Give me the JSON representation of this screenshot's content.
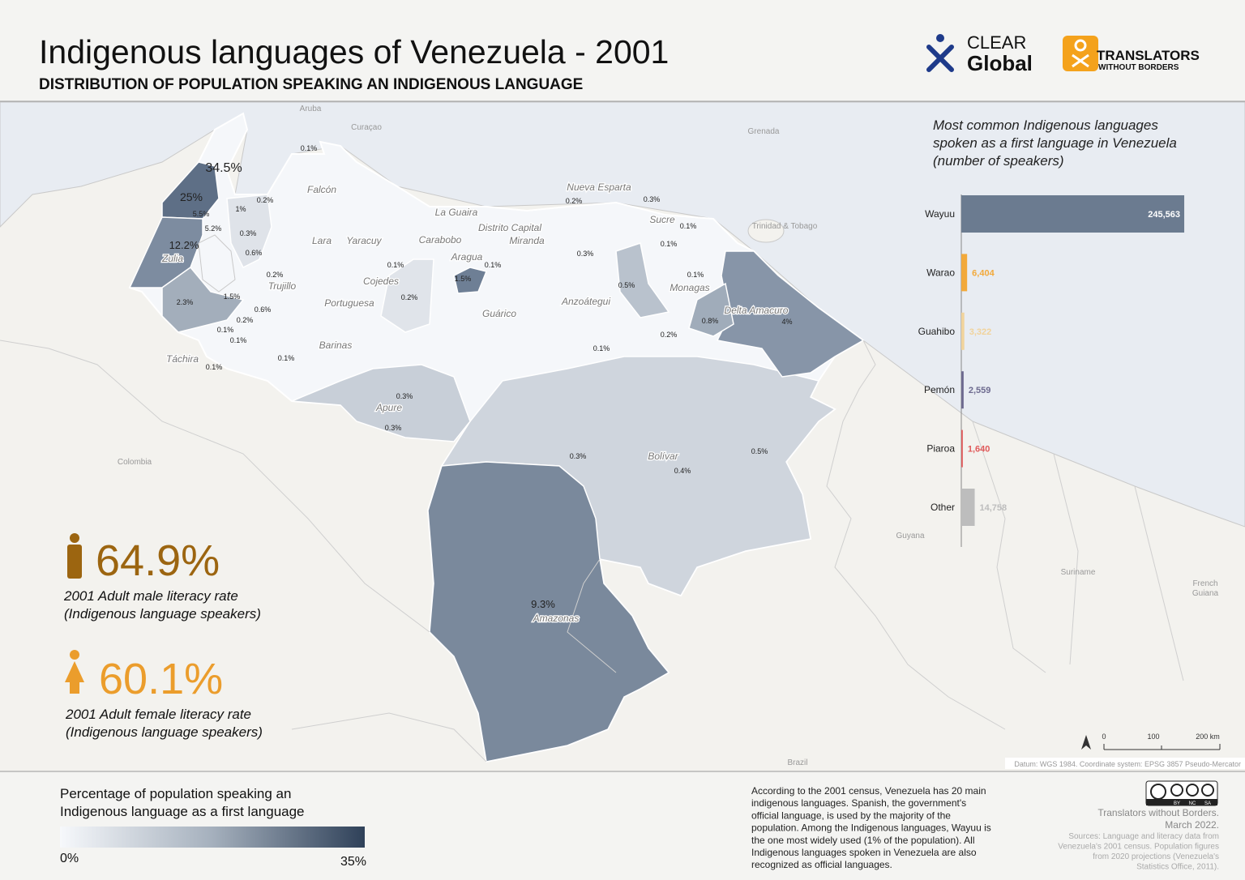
{
  "header": {
    "title": "Indigenous languages of Venezuela - 2001",
    "subtitle": "DISTRIBUTION OF POPULATION SPEAKING AN INDIGENOUS LANGUAGE"
  },
  "logos": {
    "clear": [
      "CLEAR",
      "Global"
    ],
    "twb": [
      "TRANSLATORS",
      "WITHOUT BORDERS"
    ]
  },
  "map": {
    "countries": [
      "Aruba",
      "Curaçao",
      "Grenada",
      "Trinidad & Tobago",
      "Colombia",
      "Guyana",
      "Suriname",
      "French",
      "Guiana",
      "Brazil"
    ],
    "states": [
      "Falcón",
      "Nueva Esparta",
      "La Guaira",
      "Sucre",
      "Distrito Capital",
      "Miranda",
      "Lara",
      "Yaracuy",
      "Carabobo",
      "Aragua",
      "Zulia",
      "Trujillo",
      "Cojedes",
      "Monagas",
      "Portuguesa",
      "Guárico",
      "Anzoátegui",
      "Delta Amacuro",
      "Barinas",
      "Táchira",
      "Apure",
      "Bolívar",
      "Amazonas"
    ],
    "percentages": [
      "0.1%",
      "34.5%",
      "25%",
      "0.2%",
      "1%",
      "5.5%",
      "5.2%",
      "0.3%",
      "12.2%",
      "0.6%",
      "0.2%",
      "1.5%",
      "2.3%",
      "0.6%",
      "0.2%",
      "0.1%",
      "0.1%",
      "0.1%",
      "0.1%",
      "0.1%",
      "0.2%",
      "1.5%",
      "0.1%",
      "0.2%",
      "0.3%",
      "0.1%",
      "0.1%",
      "0.3%",
      "0.1%",
      "0.5%",
      "0.8%",
      "4%",
      "0.2%",
      "0.1%",
      "0.3%",
      "0.3%",
      "0.3%",
      "0.4%",
      "0.5%",
      "9.3%"
    ],
    "scale_labels": [
      "0",
      "100",
      "200 km"
    ],
    "datum": "Datum: WGS 1984. Coordinate system: EPSG 3857 Pseudo-Mercator"
  },
  "chart_data": {
    "type": "bar",
    "orientation": "horizontal",
    "title": [
      "Most common Indigenous languages",
      "spoken as a first language in Venezuela",
      "(number of speakers)"
    ],
    "categories": [
      "Wayuu",
      "Warao",
      "Guahibo",
      "Pemón",
      "Piaroa",
      "Other"
    ],
    "values": [
      245563,
      6404,
      3322,
      2559,
      1640,
      14758
    ],
    "value_labels": [
      "245,563",
      "6,404",
      "3,322",
      "2,559",
      "1,640",
      "14,758"
    ],
    "colors": [
      "#6b7b90",
      "#f2a93b",
      "#f1d39c",
      "#6d6a8f",
      "#e05a5a",
      "#bdbdbd"
    ],
    "xlim": [
      0,
      300000
    ]
  },
  "literacy": [
    {
      "value": "64.9%",
      "label": [
        "2001 Adult male literacy rate",
        "(Indigenous language speakers)"
      ],
      "color": "#9c6510"
    },
    {
      "value": "60.1%",
      "label": [
        "2001 Adult female literacy rate",
        "(Indigenous language speakers)"
      ],
      "color": "#eb9d2c"
    }
  ],
  "legend": {
    "title": [
      "Percentage of population speaking an",
      "Indigenous language as a first language"
    ],
    "min": "0%",
    "max": "35%"
  },
  "description": [
    "According to the 2001 census, Venezuela has 20 main",
    "indigenous languages. Spanish, the government's",
    "official language, is used by the majority of the",
    "population. Among the Indigenous languages, Wayuu is",
    "the one most widely used (1% of the population). All",
    "Indigenous languages spoken in Venezuela are also",
    "recognized as official languages."
  ],
  "credits": [
    "Translators without Borders.",
    "March 2022."
  ],
  "sources": [
    "Sources: Language and literacy data from",
    "Venezuela's 2001 census. Population figures",
    "from 2020 projections (Venezuela's",
    "Statistics Office, 2011)."
  ],
  "license": [
    "BY",
    "NC",
    "SA"
  ]
}
